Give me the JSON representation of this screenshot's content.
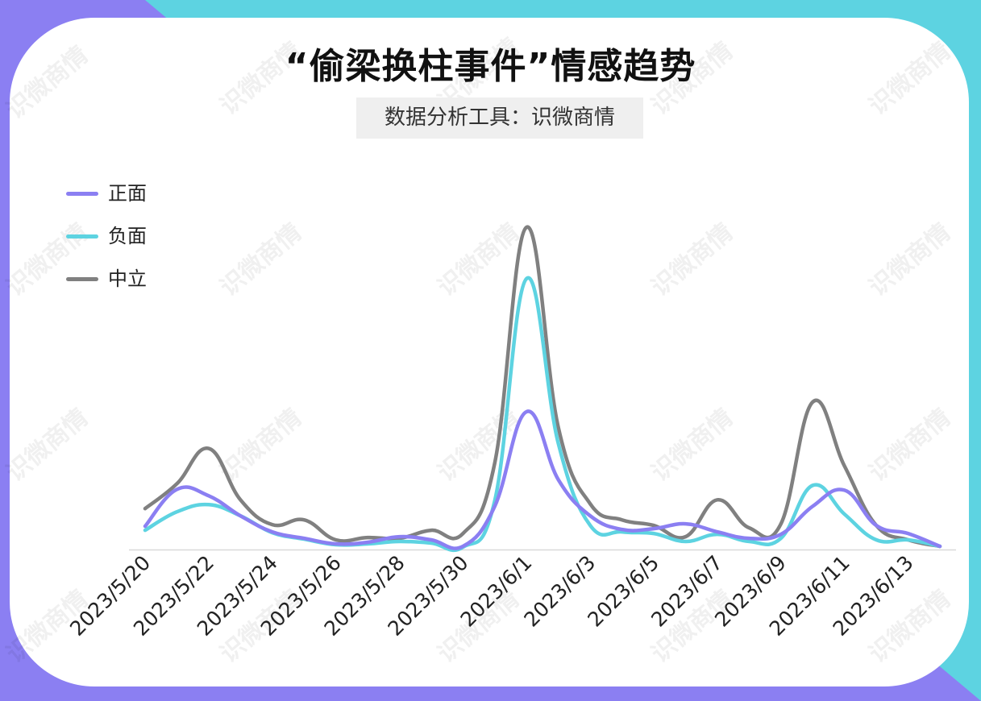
{
  "title": "“偷梁换柱事件”情感趋势",
  "subtitle": "数据分析工具：识微商情",
  "watermark": "识微商情",
  "colors": {
    "background_cyan": "#5dd3e1",
    "background_purple": "#8b7ff2",
    "positive": "#8b7ff2",
    "negative": "#5dd3e1",
    "neutral": "#808080"
  },
  "chart_data": {
    "type": "line",
    "title": "“偷梁换柱事件”情感趋势",
    "x": [
      "2023/5/20",
      "2023/5/21",
      "2023/5/22",
      "2023/5/23",
      "2023/5/24",
      "2023/5/25",
      "2023/5/26",
      "2023/5/27",
      "2023/5/28",
      "2023/5/29",
      "2023/5/30",
      "2023/5/31",
      "2023/6/1",
      "2023/6/2",
      "2023/6/3",
      "2023/6/4",
      "2023/6/5",
      "2023/6/6",
      "2023/6/7",
      "2023/6/8",
      "2023/6/9",
      "2023/6/10",
      "2023/6/11",
      "2023/6/12",
      "2023/6/13",
      "2023/6/14"
    ],
    "tick_labels": [
      "2023/5/20",
      "2023/5/22",
      "2023/5/24",
      "2023/5/26",
      "2023/5/28",
      "2023/5/30",
      "2023/6/1",
      "2023/6/3",
      "2023/6/5",
      "2023/6/7",
      "2023/6/9",
      "2023/6/11",
      "2023/6/13"
    ],
    "ylim": [
      0,
      400
    ],
    "grid": false,
    "legend_position": "top-left",
    "series": [
      {
        "name": "正面",
        "color": "#8b7ff2",
        "values": [
          27,
          73,
          65,
          40,
          20,
          12,
          5,
          7,
          14,
          10,
          2,
          52,
          170,
          85,
          40,
          23,
          24,
          30,
          20,
          12,
          17,
          52,
          72,
          28,
          18,
          2
        ]
      },
      {
        "name": "负面",
        "color": "#5dd3e1",
        "values": [
          22,
          45,
          54,
          40,
          19,
          11,
          4,
          5,
          8,
          6,
          1,
          59,
          336,
          130,
          28,
          20,
          18,
          8,
          17,
          8,
          12,
          78,
          42,
          10,
          10,
          2
        ]
      },
      {
        "name": "中立",
        "color": "#808080",
        "values": [
          49,
          80,
          124,
          60,
          29,
          35,
          10,
          13,
          12,
          22,
          18,
          106,
          400,
          150,
          55,
          35,
          28,
          14,
          60,
          25,
          30,
          182,
          102,
          28,
          10,
          2
        ]
      }
    ]
  }
}
